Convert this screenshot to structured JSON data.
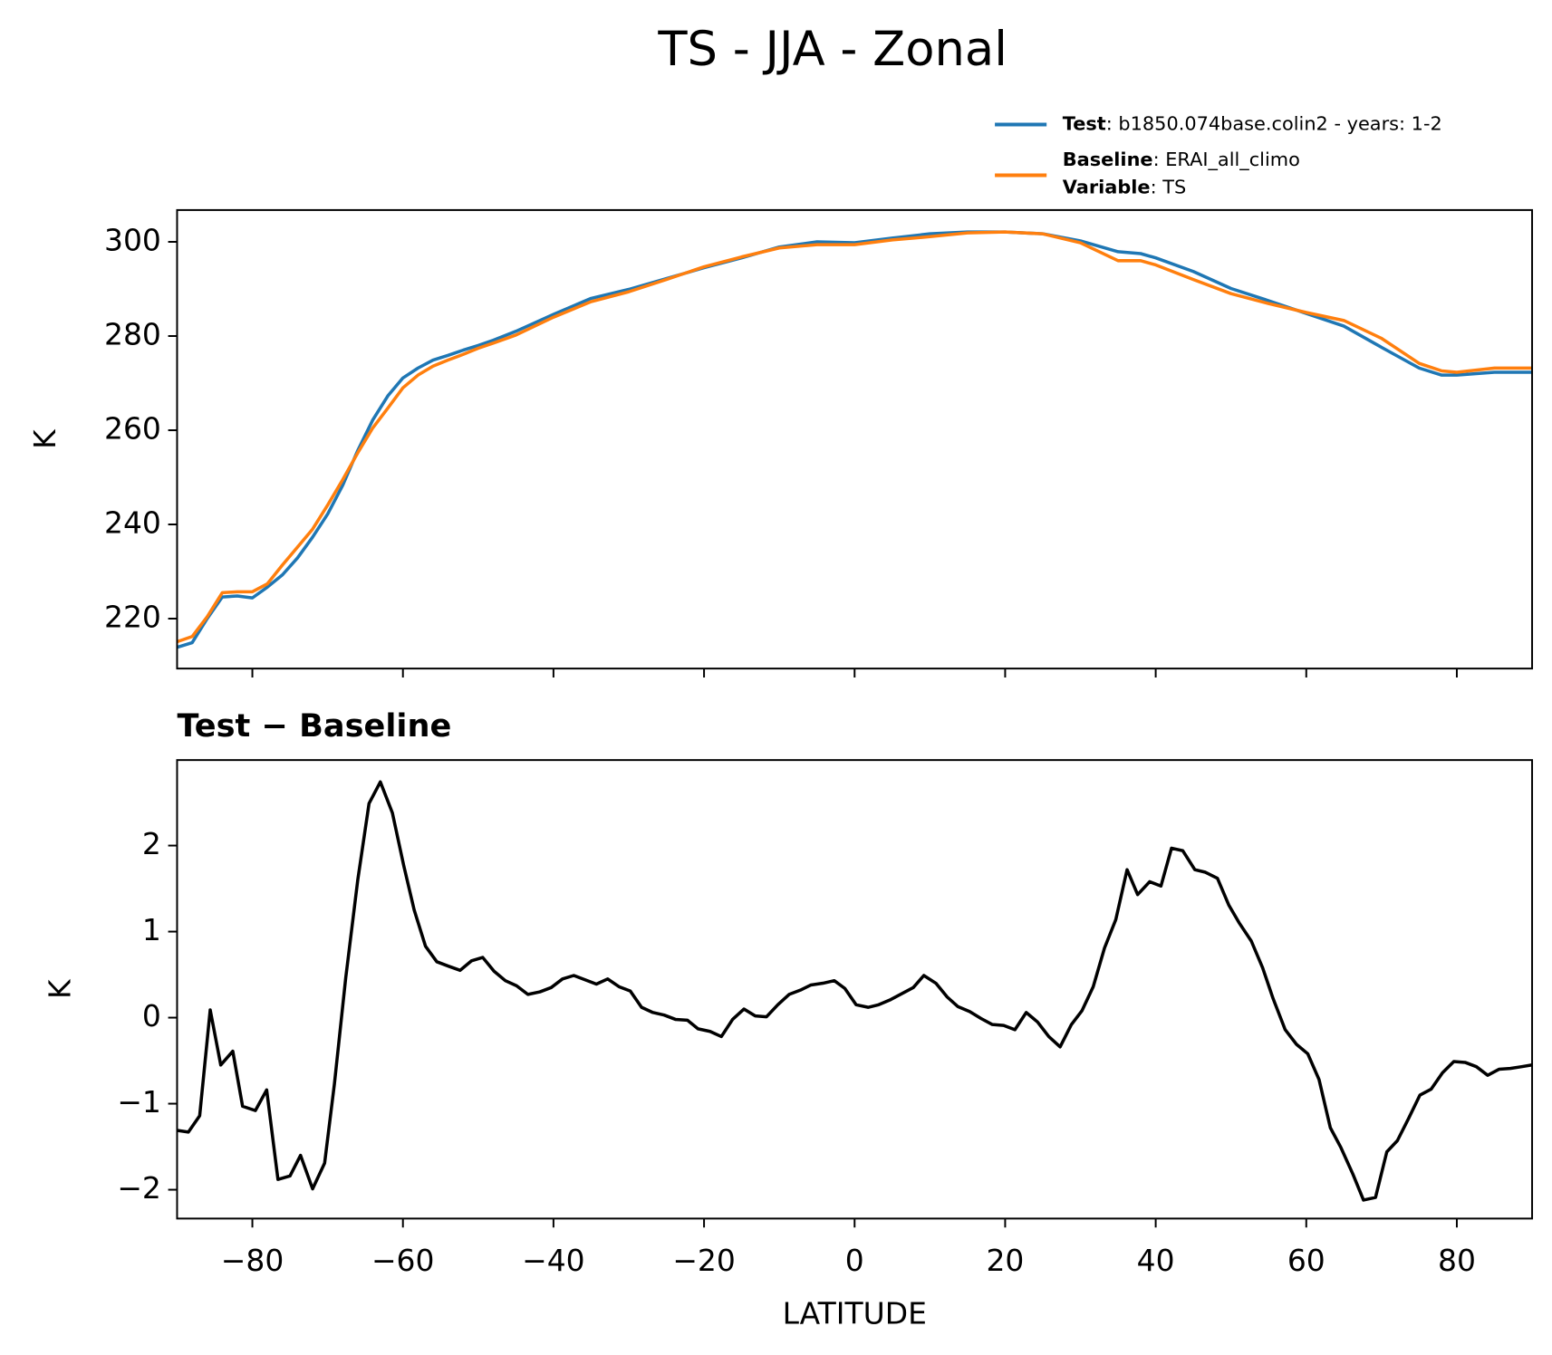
{
  "title": "TS - JJA - Zonal",
  "chart_data": [
    {
      "type": "line",
      "ylabel": "K",
      "x": [
        -90,
        -88,
        -86,
        -84,
        -82,
        -80,
        -78,
        -76,
        -74,
        -72,
        -70,
        -68,
        -66,
        -64,
        -62,
        -60,
        -58,
        -56,
        -54,
        -52,
        -50,
        -48,
        -45,
        -40,
        -35,
        -30,
        -25,
        -20,
        -15,
        -10,
        -5,
        0,
        5,
        10,
        15,
        20,
        25,
        30,
        35,
        38,
        40,
        45,
        50,
        55,
        60,
        65,
        70,
        75,
        78,
        80,
        85,
        90
      ],
      "series": [
        {
          "name": "Test",
          "detail": ": b1850.074base.colin2 - years: 1-2",
          "color": "#1f77b4",
          "values": [
            213.9,
            214.9,
            220,
            224.6,
            224.8,
            224.4,
            226.7,
            229.3,
            232.9,
            237.3,
            242.2,
            248.3,
            255.7,
            262.2,
            267.3,
            271.1,
            273.2,
            274.9,
            275.9,
            277.0,
            278.0,
            279.1,
            281.0,
            284.6,
            288.0,
            289.9,
            292.2,
            294.5,
            296.6,
            298.9,
            300,
            299.8,
            300.8,
            301.7,
            302.1,
            302.1,
            301.7,
            300.2,
            297.9,
            297.5,
            296.6,
            293.7,
            290.1,
            287.5,
            284.8,
            282.1,
            277.6,
            273.2,
            271.7,
            271.7,
            272.3,
            272.3
          ]
        },
        {
          "name": "Baseline",
          "detail": ": ERAI_all_climo",
          "color": "#ff7f0e",
          "values": [
            215.1,
            216.2,
            220.4,
            225.5,
            225.7,
            225.7,
            227.4,
            231.4,
            235.2,
            239.0,
            244.1,
            249.5,
            255.2,
            260.5,
            264.7,
            269.0,
            271.7,
            273.6,
            274.9,
            276.1,
            277.4,
            278.5,
            280.2,
            284.0,
            287.3,
            289.4,
            292.0,
            294.7,
            296.8,
            298.7,
            299.4,
            299.4,
            300.4,
            301.1,
            301.9,
            302.1,
            301.7,
            299.8,
            296.0,
            296.0,
            295.1,
            292.0,
            289.0,
            286.9,
            285.0,
            283.3,
            279.5,
            274.2,
            272.6,
            272.3,
            273.2,
            273.2
          ]
        }
      ],
      "legend_note": {
        "name": "Variable",
        "detail": ": TS"
      },
      "xlim": [
        -90,
        90
      ],
      "ylim": [
        209.4,
        306.75
      ],
      "xticks": [
        -80,
        -60,
        -40,
        -20,
        0,
        20,
        40,
        60,
        80
      ],
      "yticks": [
        220,
        240,
        260,
        280,
        300
      ]
    },
    {
      "type": "line",
      "title": "Test − Baseline",
      "ylabel": "K",
      "xlabel": "LATITUDE",
      "x": [
        -90,
        -88.5,
        -87,
        -85.6,
        -84.2,
        -82.6,
        -81.3,
        -79.6,
        -78.1,
        -76.6,
        -75.0,
        -73.6,
        -72.0,
        -70.4,
        -69.1,
        -67.6,
        -66.0,
        -64.5,
        -63.0,
        -61.4,
        -59.9,
        -58.5,
        -57.0,
        -55.5,
        -54.0,
        -52.4,
        -50.9,
        -49.4,
        -47.9,
        -46.4,
        -44.9,
        -43.4,
        -41.8,
        -40.3,
        -38.8,
        -37.3,
        -35.8,
        -34.3,
        -32.8,
        -31.3,
        -29.8,
        -28.3,
        -26.8,
        -25.3,
        -23.8,
        -22.2,
        -20.8,
        -19.2,
        -17.7,
        -16.2,
        -14.7,
        -13.2,
        -11.7,
        -10.2,
        -8.7,
        -7.2,
        -5.8,
        -4.2,
        -2.7,
        -1.3,
        0.2,
        1.8,
        3.2,
        4.8,
        6.3,
        7.8,
        9.2,
        10.8,
        12.3,
        13.7,
        15.3,
        16.8,
        18.3,
        19.8,
        21.3,
        22.8,
        24.3,
        25.8,
        27.3,
        28.8,
        30.2,
        31.7,
        33.2,
        34.7,
        36.2,
        37.6,
        39.2,
        40.7,
        42.1,
        43.6,
        45.2,
        46.6,
        48.2,
        49.7,
        51.1,
        52.7,
        54.2,
        55.6,
        57.2,
        58.7,
        60.2,
        61.7,
        63.2,
        64.6,
        66.2,
        67.6,
        69.2,
        70.7,
        72.1,
        73.6,
        75.1,
        76.6,
        78.1,
        79.6,
        81.1,
        82.6,
        84.1,
        85.6,
        87.1,
        88.6,
        90
      ],
      "series": [
        {
          "color": "#000000",
          "values": [
            -1.31,
            -1.33,
            -1.14,
            0.09,
            -0.55,
            -0.39,
            -1.03,
            -1.08,
            -0.84,
            -1.88,
            -1.84,
            -1.6,
            -1.99,
            -1.69,
            -0.77,
            0.46,
            1.6,
            2.49,
            2.74,
            2.38,
            1.77,
            1.25,
            0.83,
            0.65,
            0.6,
            0.55,
            0.66,
            0.7,
            0.54,
            0.43,
            0.37,
            0.27,
            0.3,
            0.35,
            0.45,
            0.49,
            0.44,
            0.39,
            0.45,
            0.36,
            0.31,
            0.12,
            0.06,
            0.03,
            -0.02,
            -0.03,
            -0.13,
            -0.16,
            -0.22,
            -0.02,
            0.1,
            0.02,
            0.01,
            0.15,
            0.27,
            0.32,
            0.38,
            0.4,
            0.43,
            0.34,
            0.15,
            0.12,
            0.15,
            0.21,
            0.28,
            0.35,
            0.49,
            0.4,
            0.24,
            0.13,
            0.07,
            -0.01,
            -0.08,
            -0.09,
            -0.14,
            0.06,
            -0.05,
            -0.22,
            -0.34,
            -0.08,
            0.08,
            0.36,
            0.81,
            1.14,
            1.72,
            1.43,
            1.58,
            1.53,
            1.97,
            1.94,
            1.72,
            1.69,
            1.62,
            1.31,
            1.1,
            0.89,
            0.58,
            0.22,
            -0.14,
            -0.31,
            -0.42,
            -0.72,
            -1.28,
            -1.51,
            -1.82,
            -2.12,
            -2.09,
            -1.56,
            -1.43,
            -1.17,
            -0.9,
            -0.83,
            -0.64,
            -0.51,
            -0.52,
            -0.57,
            -0.67,
            -0.6,
            -0.59,
            -0.57,
            -0.55
          ]
        }
      ],
      "xlim": [
        -90,
        90
      ],
      "ylim": [
        -2.335,
        2.994
      ],
      "xticks": [
        {
          "value": -80,
          "label": "−80"
        },
        {
          "value": -60,
          "label": "−60"
        },
        {
          "value": -40,
          "label": "−40"
        },
        {
          "value": -20,
          "label": "−20"
        },
        0,
        20,
        40,
        60,
        80
      ],
      "yticks": [
        {
          "value": -2,
          "label": "−2"
        },
        {
          "value": -1,
          "label": "−1"
        },
        0,
        1,
        2
      ]
    }
  ]
}
